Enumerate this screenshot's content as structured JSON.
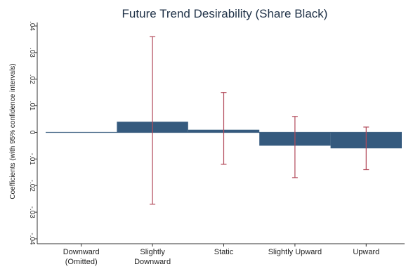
{
  "chart_data": {
    "type": "bar",
    "title": "Future Trend Desirability (Share Black)",
    "ylabel": "Coefficients (with 95% confidence intervals)",
    "xlabel": "",
    "categories": [
      [
        "Downward",
        "(Omitted)"
      ],
      [
        "Slightly",
        "Downward"
      ],
      [
        "Static"
      ],
      [
        "Slightly Upward"
      ],
      [
        "Upward"
      ]
    ],
    "values": [
      0,
      0.004,
      0.001,
      -0.005,
      -0.006
    ],
    "ci_low": [
      null,
      -0.027,
      -0.012,
      -0.017,
      -0.014
    ],
    "ci_high": [
      null,
      0.036,
      0.015,
      0.006,
      0.002
    ],
    "yticks": [
      ".04",
      ".03",
      ".02",
      ".01",
      "0",
      "-.01",
      "-.02",
      "-.03",
      "-.04"
    ],
    "ylim": [
      -0.04,
      0.04
    ],
    "grid": false,
    "legend": "none",
    "colors": {
      "bar": "#355a7e",
      "ci": "#b24a5a",
      "zero": "#4a6b8a",
      "axis": "#333333"
    }
  }
}
